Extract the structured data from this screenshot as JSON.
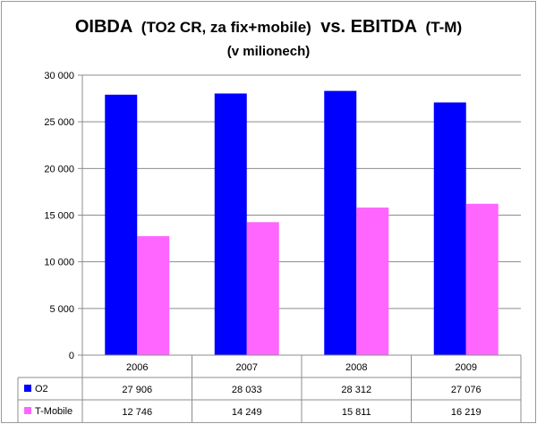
{
  "chart_data": {
    "type": "bar",
    "title_main": "OIBDA",
    "title_paren1": "(TO2 CR, za fix+mobile)",
    "title_vs": "vs. EBITDA",
    "title_paren2": "(T-M)",
    "subtitle": "(v milionech)",
    "categories": [
      "2006",
      "2007",
      "2008",
      "2009"
    ],
    "y_ticks": [
      "0",
      "5 000",
      "10 000",
      "15 000",
      "20 000",
      "25 000",
      "30 000"
    ],
    "ylim": [
      0,
      30000
    ],
    "grid": true,
    "legend": "data-table",
    "series": [
      {
        "name": "O2",
        "color": "#0000ff",
        "values": [
          27906,
          28033,
          28312,
          27076
        ],
        "labels": [
          "27 906",
          "28 033",
          "28 312",
          "27 076"
        ]
      },
      {
        "name": "T-Mobile",
        "color": "#ff66ff",
        "values": [
          12746,
          14249,
          15811,
          16219
        ],
        "labels": [
          "12 746",
          "14 249",
          "15 811",
          "16 219"
        ]
      }
    ]
  }
}
